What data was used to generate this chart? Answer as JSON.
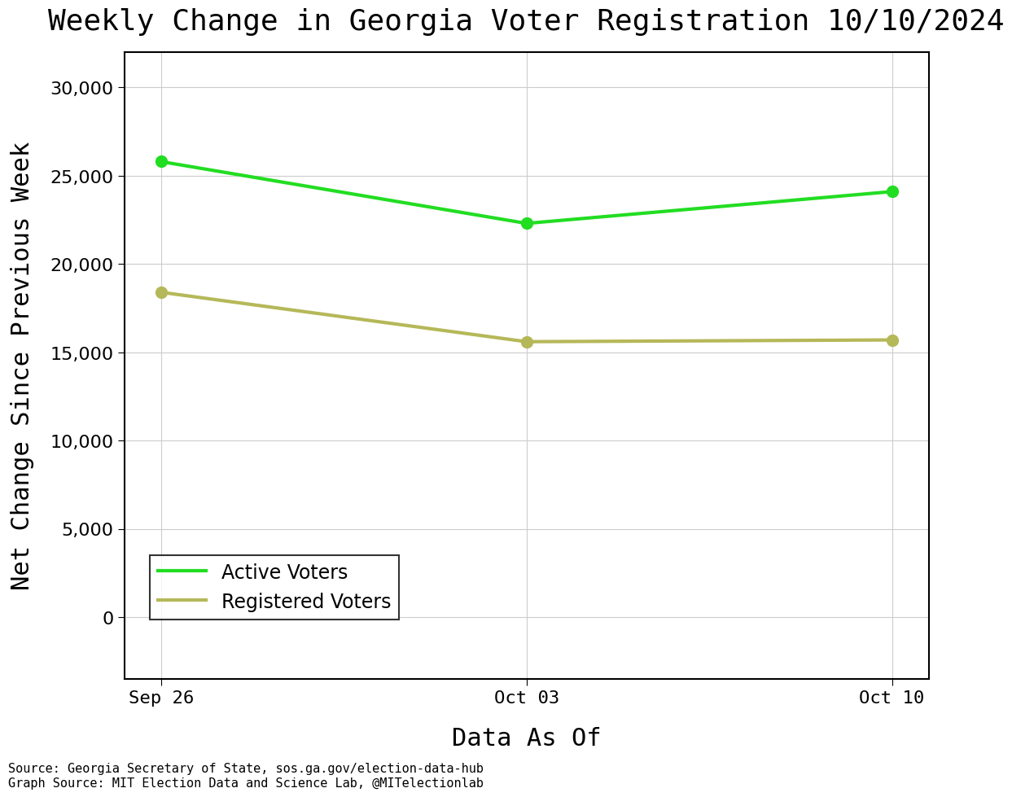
{
  "title": "Weekly Change in Georgia Voter Registration 10/10/2024",
  "xlabel": "Data As Of",
  "ylabel": "Net Change Since Previous Week",
  "x_labels": [
    "Sep 26",
    "Oct 03",
    "Oct 10"
  ],
  "active_voters": [
    25800,
    22300,
    24100
  ],
  "registered_voters": [
    18400,
    15600,
    15700
  ],
  "active_color": "#22DD22",
  "registered_color": "#B5B858",
  "ylim": [
    -3500,
    32000
  ],
  "yticks": [
    0,
    5000,
    10000,
    15000,
    20000,
    25000,
    30000
  ],
  "source_text": "Source: Georgia Secretary of State, sos.ga.gov/election-data-hub\nGraph Source: MIT Election Data and Science Lab, @MITelectionlab",
  "title_fontsize": 26,
  "axis_label_fontsize": 22,
  "tick_fontsize": 16,
  "legend_fontsize": 17,
  "source_fontsize": 11,
  "line_width": 3,
  "marker_size": 10,
  "background_color": "#ffffff",
  "grid_color": "#cccccc"
}
